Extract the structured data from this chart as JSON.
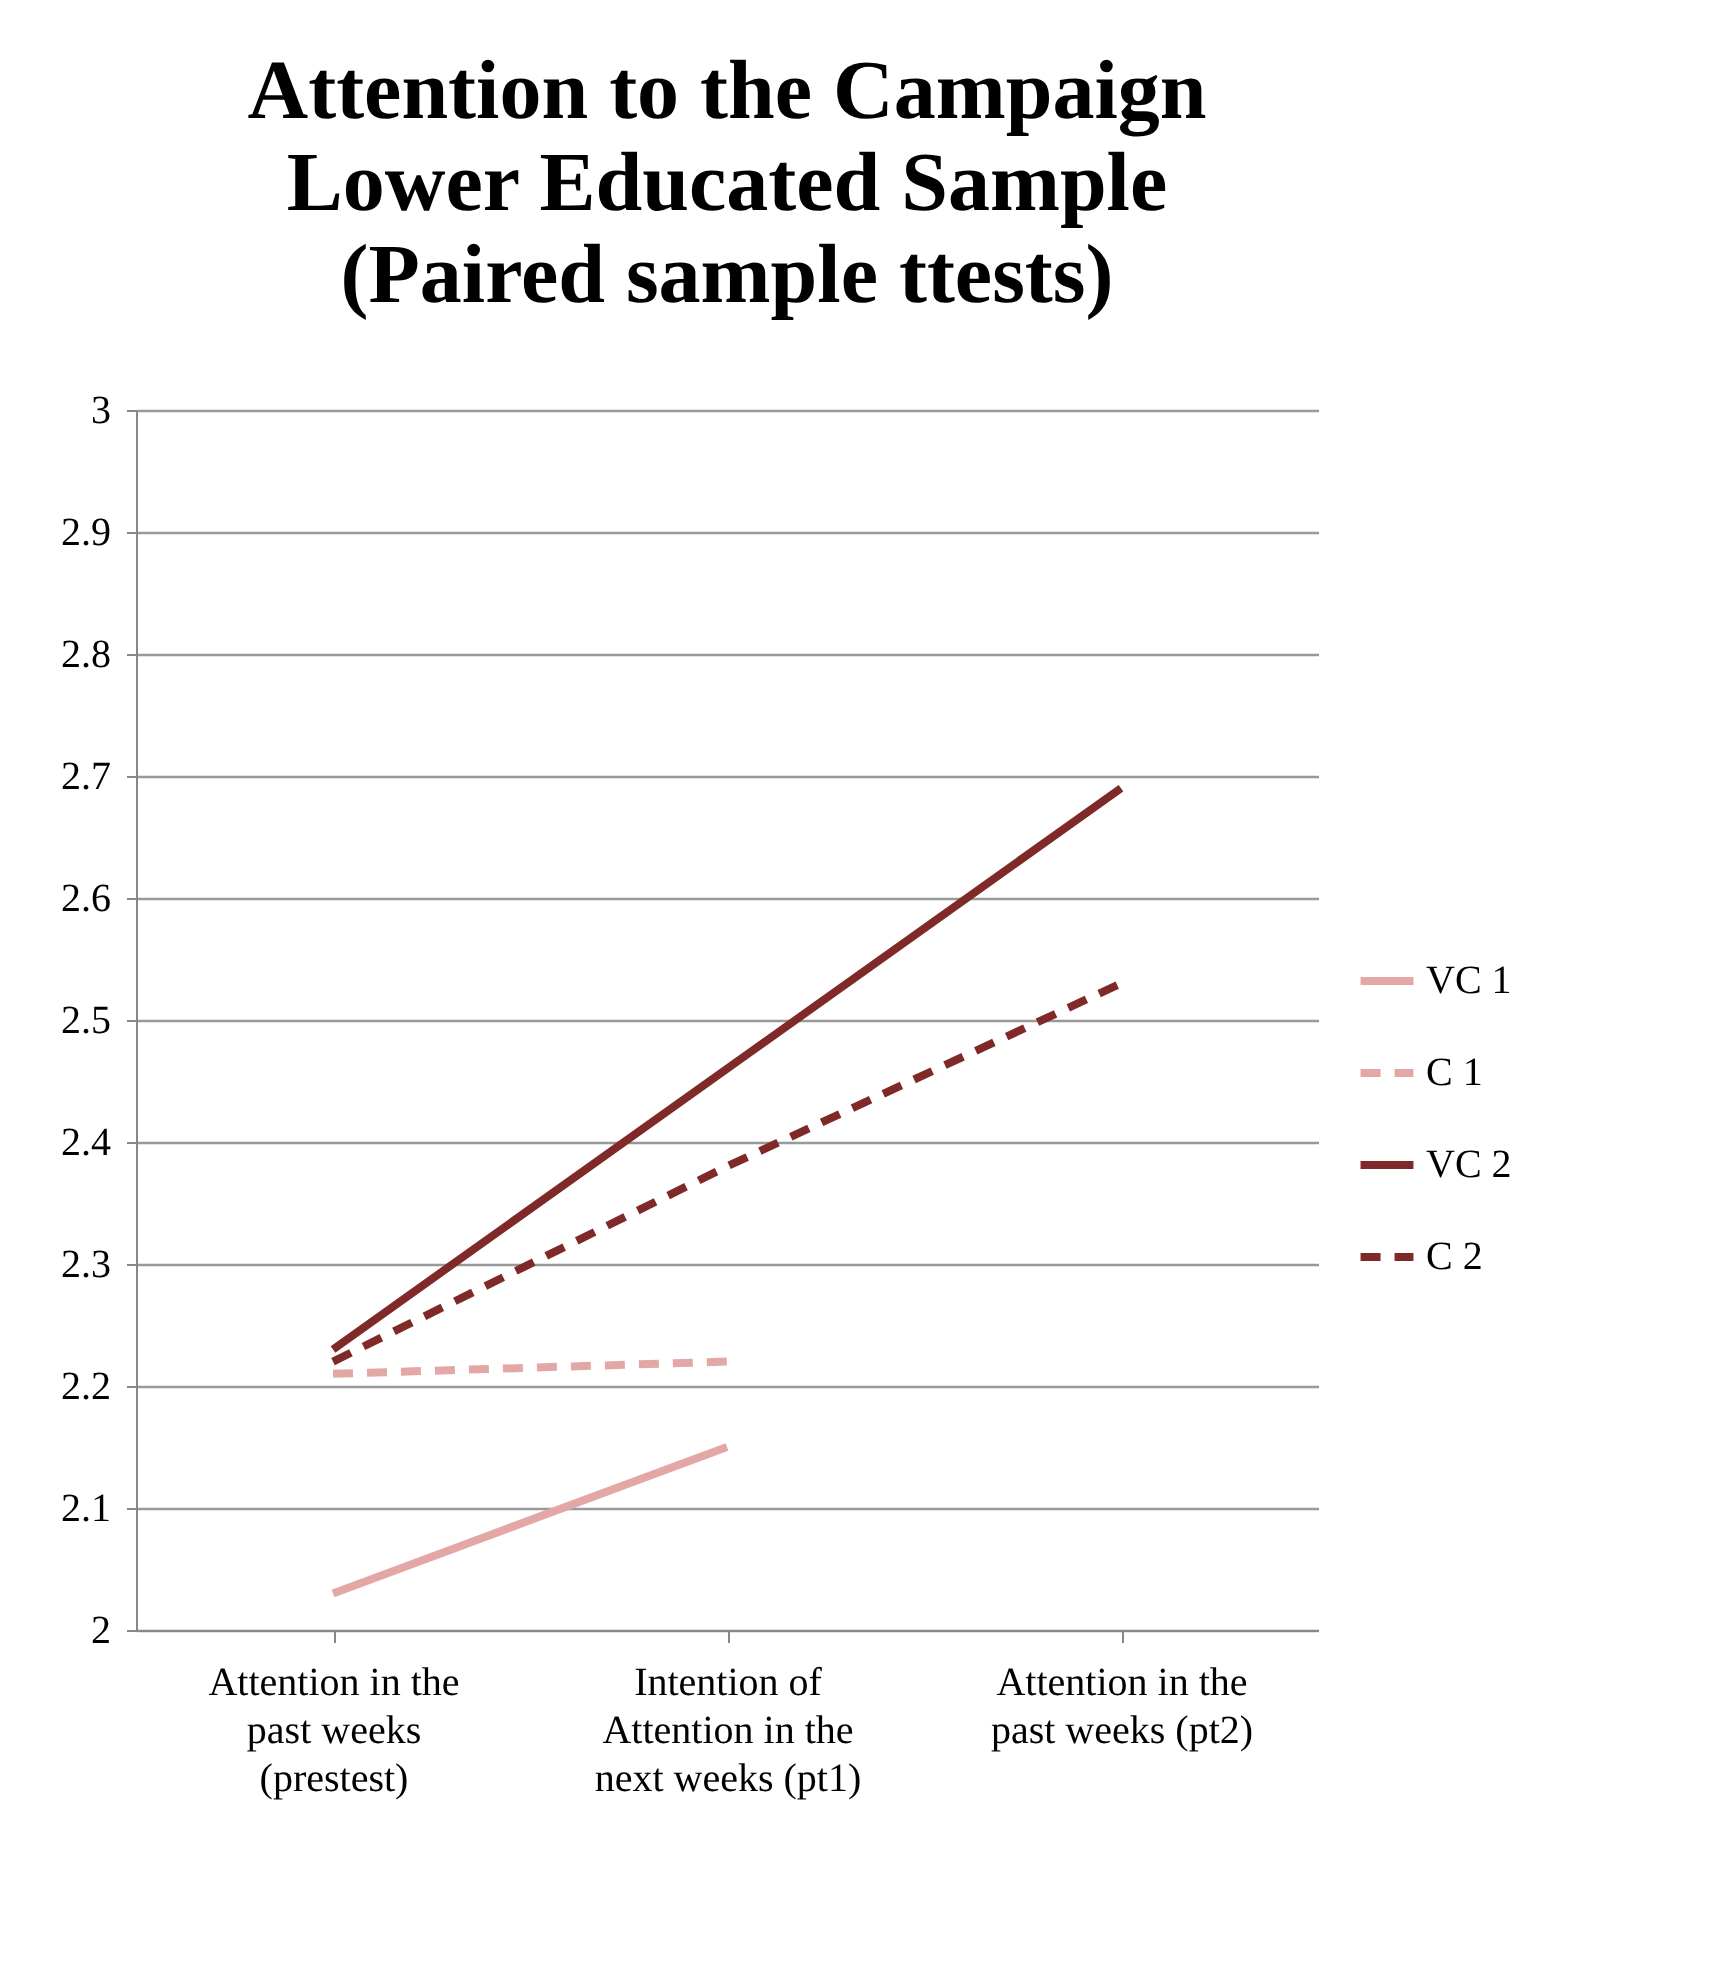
{
  "chart_data": {
    "type": "line",
    "title": "Attention to the Campaign Lower Educated Sample (Paired sample ttests)",
    "categories": [
      "Attention in the past weeks (prestest)",
      "Intention of Attention in the next weeks (pt1)",
      "Attention in the past weeks (pt2)"
    ],
    "series": [
      {
        "name": "VC 1",
        "color": "#e3a8a5",
        "line_style": "solid",
        "values": [
          2.03,
          2.15,
          null
        ]
      },
      {
        "name": "C 1",
        "color": "#e3a8a5",
        "line_style": "dashed",
        "values": [
          2.21,
          2.22,
          null
        ]
      },
      {
        "name": "VC 2",
        "color": "#7f2a28",
        "line_style": "solid",
        "values": [
          2.23,
          2.46,
          2.69
        ]
      },
      {
        "name": "C 2",
        "color": "#7f2a28",
        "line_style": "dashed",
        "values": [
          2.22,
          2.38,
          2.53
        ]
      }
    ],
    "ylim": [
      2,
      3
    ],
    "yticks": [
      2,
      2.1,
      2.2,
      2.3,
      2.4,
      2.5,
      2.6,
      2.7,
      2.8,
      2.9,
      3
    ],
    "grid": "y",
    "legend": "right",
    "marker": "none"
  }
}
